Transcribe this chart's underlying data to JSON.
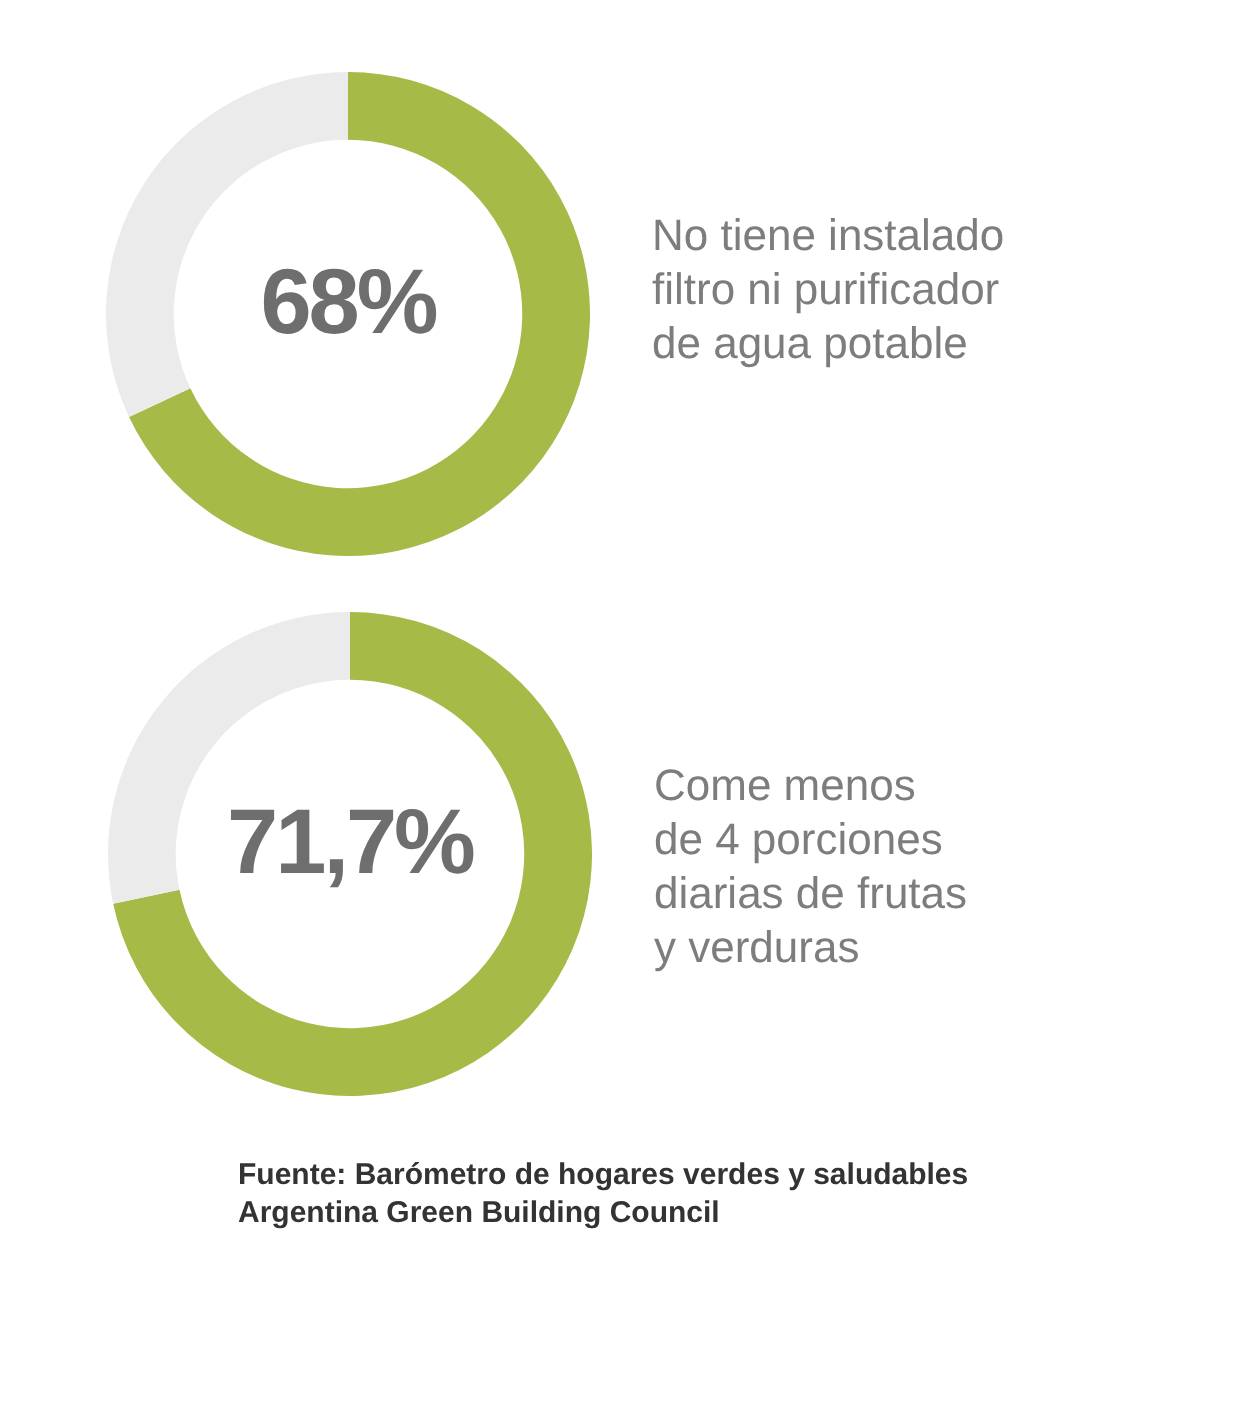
{
  "chart_data": [
    {
      "type": "donut",
      "title": "No tiene instalado\nfiltro ni purificador\nde agua potable",
      "categories": [
        null,
        null
      ],
      "values": [
        68,
        32
      ],
      "colors": [
        "#a5ba47",
        "#ebebeb"
      ],
      "value_labels": [
        "68%",
        null
      ]
    },
    {
      "type": "donut",
      "title": "Come menos\nde 4 porciones\ndiarias de frutas\ny verduras",
      "categories": [
        null,
        null
      ],
      "values": [
        71.7,
        28.3
      ],
      "colors": [
        "#a5ba47",
        "#ebebeb"
      ],
      "value_labels": [
        "71,7%",
        null
      ],
      "annotations": [
        "Fuente: Barómetro de hogares verdes y saludables",
        "Argentina Green Building Council"
      ]
    }
  ]
}
